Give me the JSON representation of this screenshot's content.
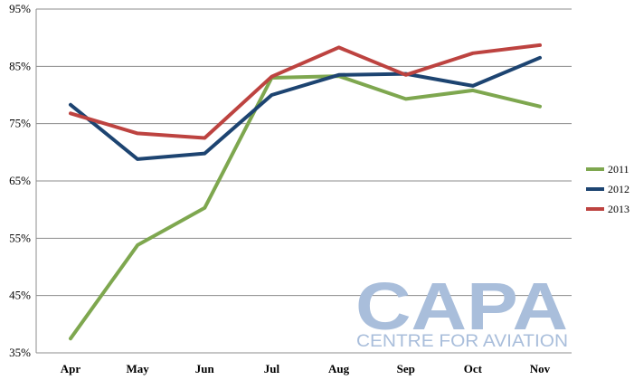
{
  "chart_data": {
    "type": "line",
    "categories": [
      "Apr",
      "May",
      "Jun",
      "Jul",
      "Aug",
      "Sep",
      "Oct",
      "Nov"
    ],
    "ylim": [
      35,
      95
    ],
    "yticks": [
      35,
      45,
      55,
      65,
      75,
      85,
      95
    ],
    "ytick_suffix": "%",
    "grid": true,
    "legend_position": "right",
    "series": [
      {
        "name": "2011",
        "color": "#7ea74f",
        "values": [
          37.5,
          53.8,
          60.3,
          83.0,
          83.3,
          79.3,
          80.8,
          78.0
        ]
      },
      {
        "name": "2012",
        "color": "#1d4471",
        "values": [
          78.3,
          68.8,
          69.8,
          80.0,
          83.5,
          83.7,
          81.6,
          86.5
        ]
      },
      {
        "name": "2013",
        "color": "#bd4340",
        "values": [
          76.8,
          73.3,
          72.5,
          83.2,
          88.3,
          83.5,
          87.3,
          88.7
        ]
      }
    ]
  },
  "watermark": {
    "brand": "CAPA",
    "tagline": "CENTRE FOR AVIATION",
    "color": "#a9bedb"
  }
}
